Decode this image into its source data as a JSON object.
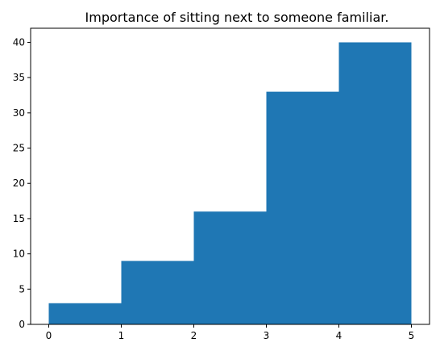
{
  "chart_data": {
    "type": "bar",
    "title": "Importance of sitting next to someone familiar.",
    "xlabel": "",
    "ylabel": "",
    "bins": [
      [
        0,
        1
      ],
      [
        1,
        2
      ],
      [
        2,
        3
      ],
      [
        3,
        4
      ],
      [
        4,
        5
      ]
    ],
    "values": [
      3,
      9,
      16,
      33,
      40
    ],
    "xlim": [
      -0.25,
      5.25
    ],
    "ylim": [
      0,
      42
    ],
    "x_ticks": [
      0,
      1,
      2,
      3,
      4,
      5
    ],
    "y_ticks": [
      0,
      5,
      10,
      15,
      20,
      25,
      30,
      35,
      40
    ],
    "bar_color": "#1f77b4",
    "grid": false
  }
}
